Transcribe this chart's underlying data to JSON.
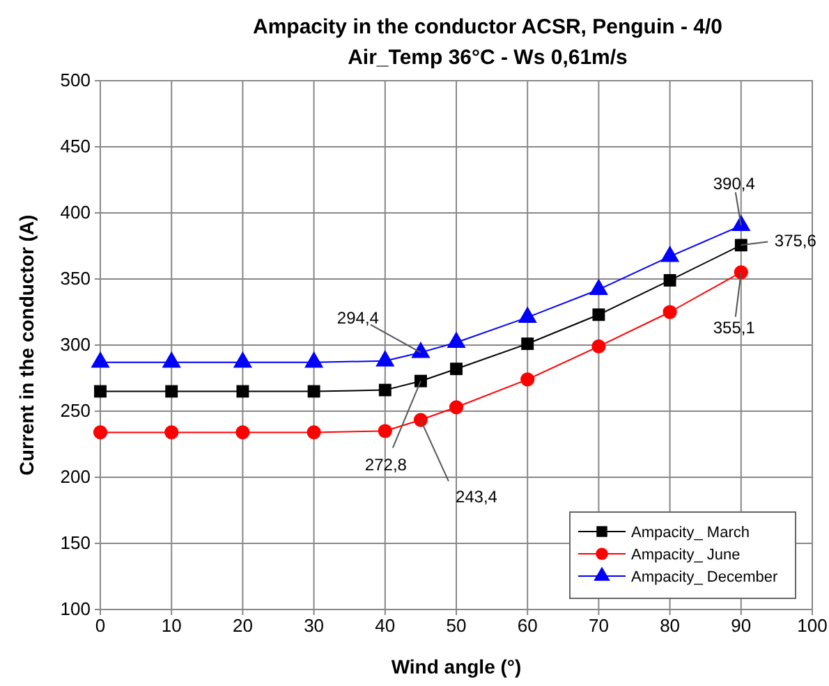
{
  "chart_data": {
    "type": "line",
    "title": "Ampacity in the conductor ACSR, Penguin - 4/0",
    "subtitle": "Air_Temp 36°C - Ws 0,61m/s",
    "xlabel": "Wind angle (°)",
    "ylabel": "Current in the conductor (A)",
    "x": [
      0,
      10,
      20,
      30,
      40,
      45,
      50,
      60,
      70,
      80,
      90
    ],
    "series": [
      {
        "name": "Ampacity_ March",
        "color": "#000000",
        "marker": "square",
        "values": [
          265,
          265,
          265,
          265,
          266,
          272.8,
          282,
          301,
          323,
          349,
          375.6
        ],
        "value_labels": [
          null,
          null,
          null,
          null,
          null,
          "272,8",
          null,
          null,
          null,
          null,
          "375,6"
        ]
      },
      {
        "name": "Ampacity_ June",
        "color": "#ff0000",
        "marker": "circle",
        "values": [
          234,
          234,
          234,
          234,
          235,
          243.4,
          253,
          274,
          299,
          325,
          355.1
        ],
        "value_labels": [
          null,
          null,
          null,
          null,
          null,
          "243,4",
          null,
          null,
          null,
          null,
          "355,1"
        ]
      },
      {
        "name": "Ampacity_ December",
        "color": "#0000ff",
        "marker": "triangle",
        "values": [
          287,
          287,
          287,
          287,
          288,
          294.4,
          302,
          321,
          342,
          367,
          390.4
        ],
        "value_labels": [
          null,
          null,
          null,
          null,
          null,
          "294,4",
          null,
          null,
          null,
          null,
          "390,4"
        ]
      }
    ],
    "xlim": [
      0,
      100
    ],
    "xticks": [
      0,
      10,
      20,
      30,
      40,
      50,
      60,
      70,
      80,
      90,
      100
    ],
    "ylim": [
      100,
      500
    ],
    "yticks": [
      100,
      150,
      200,
      250,
      300,
      350,
      400,
      450,
      500
    ],
    "grid": true,
    "legend": "bottom right"
  }
}
